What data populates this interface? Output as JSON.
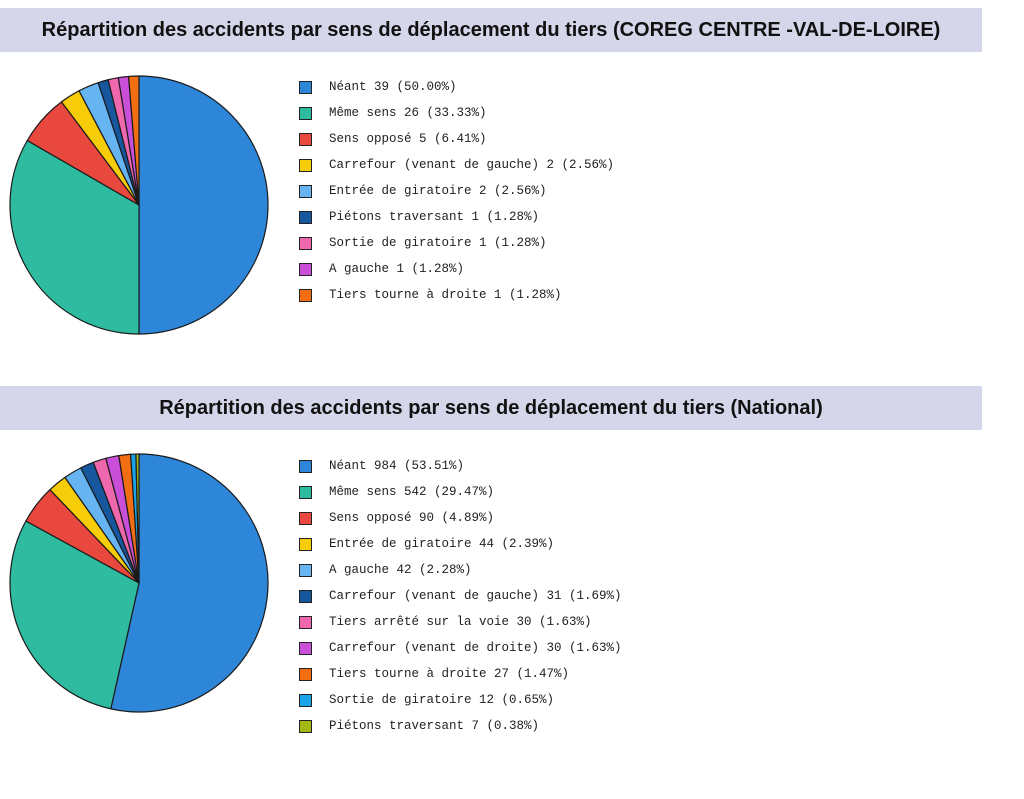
{
  "chart_data": [
    {
      "type": "pie",
      "title": "Répartition des accidents par sens de déplacement du tiers (COREG CENTRE -VAL-DE-LOIRE)",
      "legend_position": "right",
      "slices": [
        {
          "label": "Néant",
          "value": 39,
          "percent": "50.00%",
          "color": "#2e86d9"
        },
        {
          "label": "Même sens",
          "value": 26,
          "percent": "33.33%",
          "color": "#2fbba0"
        },
        {
          "label": "Sens opposé",
          "value": 5,
          "percent": "6.41%",
          "color": "#e8483d"
        },
        {
          "label": "Carrefour (venant de gauche)",
          "value": 2,
          "percent": "2.56%",
          "color": "#f7cc08"
        },
        {
          "label": "Entrée de giratoire",
          "value": 2,
          "percent": "2.56%",
          "color": "#66b5f2"
        },
        {
          "label": "Piétons traversant",
          "value": 1,
          "percent": "1.28%",
          "color": "#16579e"
        },
        {
          "label": "Sortie de giratoire",
          "value": 1,
          "percent": "1.28%",
          "color": "#ef68ad"
        },
        {
          "label": "A gauche",
          "value": 1,
          "percent": "1.28%",
          "color": "#c94fd8"
        },
        {
          "label": "Tiers tourne à droite",
          "value": 1,
          "percent": "1.28%",
          "color": "#f36d13"
        }
      ]
    },
    {
      "type": "pie",
      "title": "Répartition des accidents par sens de déplacement du tiers (National)",
      "legend_position": "right",
      "slices": [
        {
          "label": "Néant",
          "value": 984,
          "percent": "53.51%",
          "color": "#2e86d9"
        },
        {
          "label": "Même sens",
          "value": 542,
          "percent": "29.47%",
          "color": "#2fbba0"
        },
        {
          "label": "Sens opposé",
          "value": 90,
          "percent": "4.89%",
          "color": "#e8483d"
        },
        {
          "label": "Entrée de giratoire",
          "value": 44,
          "percent": "2.39%",
          "color": "#f7cc08"
        },
        {
          "label": "A gauche",
          "value": 42,
          "percent": "2.28%",
          "color": "#66b5f2"
        },
        {
          "label": "Carrefour (venant de gauche)",
          "value": 31,
          "percent": "1.69%",
          "color": "#16579e"
        },
        {
          "label": "Tiers arrêté sur la voie",
          "value": 30,
          "percent": "1.63%",
          "color": "#ef68ad"
        },
        {
          "label": "Carrefour (venant de droite)",
          "value": 30,
          "percent": "1.63%",
          "color": "#c94fd8"
        },
        {
          "label": "Tiers tourne à droite",
          "value": 27,
          "percent": "1.47%",
          "color": "#f36d13"
        },
        {
          "label": "Sortie de giratoire",
          "value": 12,
          "percent": "0.65%",
          "color": "#1aa3e8"
        },
        {
          "label": "Piétons traversant",
          "value": 7,
          "percent": "0.38%",
          "color": "#a4b814"
        }
      ]
    }
  ]
}
